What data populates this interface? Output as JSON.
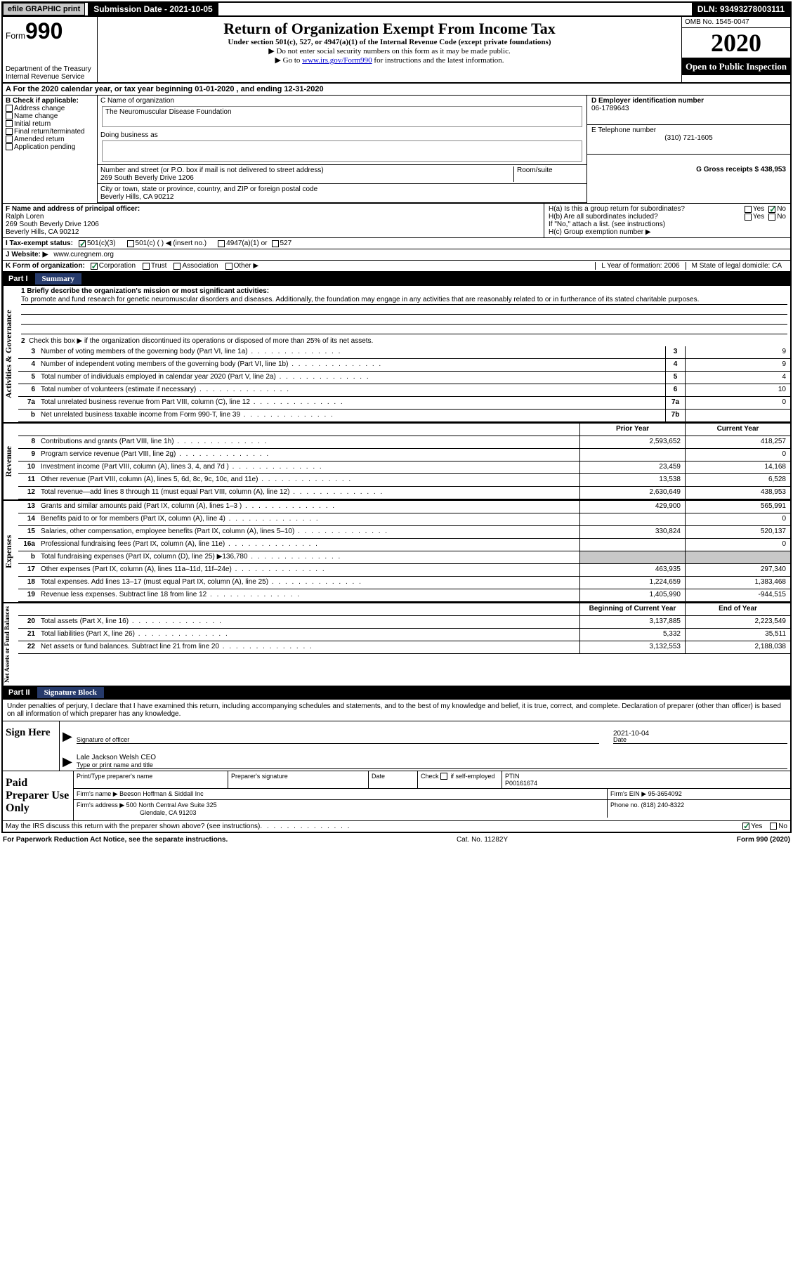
{
  "topbar": {
    "efile_label": "efile GRAPHIC print",
    "submission_label": "Submission Date - 2021-10-05",
    "dln": "DLN: 93493278003111"
  },
  "header": {
    "form_label": "Form",
    "form_number": "990",
    "dept1": "Department of the Treasury",
    "dept2": "Internal Revenue Service",
    "title": "Return of Organization Exempt From Income Tax",
    "sub1": "Under section 501(c), 527, or 4947(a)(1) of the Internal Revenue Code (except private foundations)",
    "sub2": "▶ Do not enter social security numbers on this form as it may be made public.",
    "sub3a": "▶ Go to ",
    "sub3_link": "www.irs.gov/Form990",
    "sub3b": " for instructions and the latest information.",
    "omb": "OMB No. 1545-0047",
    "year": "2020",
    "open_public": "Open to Public Inspection"
  },
  "line_a": "A For the 2020 calendar year, or tax year beginning 01-01-2020   , and ending 12-31-2020",
  "box_b": {
    "label": "B Check if applicable:",
    "opts": [
      "Address change",
      "Name change",
      "Initial return",
      "Final return/terminated",
      "Amended return",
      "Application pending"
    ]
  },
  "box_c": {
    "name_label": "C Name of organization",
    "name": "The Neuromuscular Disease Foundation",
    "dba_label": "Doing business as",
    "addr_label": "Number and street (or P.O. box if mail is not delivered to street address)",
    "room_label": "Room/suite",
    "addr": "269 South Beverly Drive 1206",
    "city_label": "City or town, state or province, country, and ZIP or foreign postal code",
    "city": "Beverly Hills, CA  90212"
  },
  "box_d": {
    "label": "D Employer identification number",
    "val": "06-1789643"
  },
  "box_e": {
    "label": "E Telephone number",
    "val": "(310) 721-1605"
  },
  "box_g": {
    "label": "G Gross receipts $ 438,953"
  },
  "box_f": {
    "label": "F  Name and address of principal officer:",
    "name": "Ralph Loren",
    "addr1": "269 South Beverly Drive 1206",
    "addr2": "Beverly Hills, CA  90212"
  },
  "box_h": {
    "a": "H(a)  Is this a group return for subordinates?",
    "b": "H(b)  Are all subordinates included?",
    "b_note": "If \"No,\" attach a list. (see instructions)",
    "c": "H(c)  Group exemption number ▶",
    "yes": "Yes",
    "no": "No"
  },
  "box_i": {
    "label": "I  Tax-exempt status:",
    "o1": "501(c)(3)",
    "o2": "501(c) (  ) ◀ (insert no.)",
    "o3": "4947(a)(1) or",
    "o4": "527"
  },
  "box_j": {
    "label": "J  Website: ▶",
    "val": " www.curegnem.org"
  },
  "box_k": {
    "label": "K Form of organization:",
    "o1": "Corporation",
    "o2": "Trust",
    "o3": "Association",
    "o4": "Other ▶"
  },
  "box_l": {
    "label": "L Year of formation: 2006"
  },
  "box_m": {
    "label": "M State of legal domicile: CA"
  },
  "part1": {
    "label": "Part I",
    "title": "Summary"
  },
  "mission": {
    "q": "1  Briefly describe the organization's mission or most significant activities:",
    "text": "To promote and fund research for genetic neuromuscular disorders and diseases. Additionally, the foundation may engage in any activities that are reasonably related to or in furtherance of its stated charitable purposes."
  },
  "line2": "Check this box ▶        if the organization discontinued its operations or disposed of more than 25% of its net assets.",
  "sidelabels": {
    "ag": "Activities & Governance",
    "rev": "Revenue",
    "exp": "Expenses",
    "na": "Net Assets or Fund Balances"
  },
  "rows_gov": [
    {
      "n": "3",
      "d": "Number of voting members of the governing body (Part VI, line 1a)",
      "mn": "3",
      "v": "9"
    },
    {
      "n": "4",
      "d": "Number of independent voting members of the governing body (Part VI, line 1b)",
      "mn": "4",
      "v": "9"
    },
    {
      "n": "5",
      "d": "Total number of individuals employed in calendar year 2020 (Part V, line 2a)",
      "mn": "5",
      "v": "4"
    },
    {
      "n": "6",
      "d": "Total number of volunteers (estimate if necessary)",
      "mn": "6",
      "v": "10"
    },
    {
      "n": "7a",
      "d": "Total unrelated business revenue from Part VIII, column (C), line 12",
      "mn": "7a",
      "v": "0"
    },
    {
      "n": "b",
      "d": "Net unrelated business taxable income from Form 990-T, line 39",
      "mn": "7b",
      "v": ""
    }
  ],
  "col_headers": {
    "prior": "Prior Year",
    "current": "Current Year"
  },
  "rows_rev": [
    {
      "n": "8",
      "d": "Contributions and grants (Part VIII, line 1h)",
      "p": "2,593,652",
      "c": "418,257"
    },
    {
      "n": "9",
      "d": "Program service revenue (Part VIII, line 2g)",
      "p": "",
      "c": "0"
    },
    {
      "n": "10",
      "d": "Investment income (Part VIII, column (A), lines 3, 4, and 7d )",
      "p": "23,459",
      "c": "14,168"
    },
    {
      "n": "11",
      "d": "Other revenue (Part VIII, column (A), lines 5, 6d, 8c, 9c, 10c, and 11e)",
      "p": "13,538",
      "c": "6,528"
    },
    {
      "n": "12",
      "d": "Total revenue—add lines 8 through 11 (must equal Part VIII, column (A), line 12)",
      "p": "2,630,649",
      "c": "438,953"
    }
  ],
  "rows_exp": [
    {
      "n": "13",
      "d": "Grants and similar amounts paid (Part IX, column (A), lines 1–3 )",
      "p": "429,900",
      "c": "565,991"
    },
    {
      "n": "14",
      "d": "Benefits paid to or for members (Part IX, column (A), line 4)",
      "p": "",
      "c": "0"
    },
    {
      "n": "15",
      "d": "Salaries, other compensation, employee benefits (Part IX, column (A), lines 5–10)",
      "p": "330,824",
      "c": "520,137"
    },
    {
      "n": "16a",
      "d": "Professional fundraising fees (Part IX, column (A), line 11e)",
      "p": "",
      "c": "0"
    },
    {
      "n": "b",
      "d": "Total fundraising expenses (Part IX, column (D), line 25) ▶136,780",
      "p": "shaded",
      "c": "shaded"
    },
    {
      "n": "17",
      "d": "Other expenses (Part IX, column (A), lines 11a–11d, 11f–24e)",
      "p": "463,935",
      "c": "297,340"
    },
    {
      "n": "18",
      "d": "Total expenses. Add lines 13–17 (must equal Part IX, column (A), line 25)",
      "p": "1,224,659",
      "c": "1,383,468"
    },
    {
      "n": "19",
      "d": "Revenue less expenses. Subtract line 18 from line 12",
      "p": "1,405,990",
      "c": "-944,515"
    }
  ],
  "na_headers": {
    "beg": "Beginning of Current Year",
    "end": "End of Year"
  },
  "rows_na": [
    {
      "n": "20",
      "d": "Total assets (Part X, line 16)",
      "p": "3,137,885",
      "c": "2,223,549"
    },
    {
      "n": "21",
      "d": "Total liabilities (Part X, line 26)",
      "p": "5,332",
      "c": "35,511"
    },
    {
      "n": "22",
      "d": "Net assets or fund balances. Subtract line 21 from line 20",
      "p": "3,132,553",
      "c": "2,188,038"
    }
  ],
  "part2": {
    "label": "Part II",
    "title": "Signature Block"
  },
  "sig_decl": "Under penalties of perjury, I declare that I have examined this return, including accompanying schedules and statements, and to the best of my knowledge and belief, it is true, correct, and complete. Declaration of preparer (other than officer) is based on all information of which preparer has any knowledge.",
  "sign_here": "Sign Here",
  "sig_officer_label": "Signature of officer",
  "sig_date_label": "Date",
  "sig_date": "2021-10-04",
  "sig_name": "Lale Jackson Welsh CEO",
  "sig_name_label": "Type or print name and title",
  "paid_prep": "Paid Preparer Use Only",
  "prep": {
    "print_label": "Print/Type preparer's name",
    "sig_label": "Preparer's signature",
    "date_label": "Date",
    "check_label": "Check         if self-employed",
    "ptin_label": "PTIN",
    "ptin": "P00161674",
    "firm_name_label": "Firm's name    ▶",
    "firm_name": "Beeson Hoffman & Siddall Inc",
    "firm_ein_label": "Firm's EIN ▶",
    "firm_ein": "95-3654092",
    "firm_addr_label": "Firm's address ▶",
    "firm_addr1": "500 North Central Ave Suite 325",
    "firm_addr2": "Glendale, CA  91203",
    "phone_label": "Phone no. (818) 240-8322"
  },
  "irs_discuss": "May the IRS discuss this return with the preparer shown above? (see instructions)",
  "paperwork": "For Paperwork Reduction Act Notice, see the separate instructions.",
  "cat": "Cat. No. 11282Y",
  "form_foot": "Form 990 (2020)",
  "colors": {
    "part_bg": "#263a6b",
    "shaded": "#c8c8c8",
    "check": "#0a7a3a"
  }
}
